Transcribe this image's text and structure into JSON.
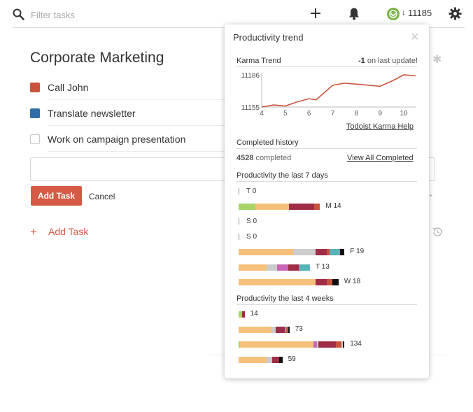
{
  "colors": {
    "accent": "#d65b46",
    "priority_red": "#c9533d",
    "priority_blue": "#2f6da8",
    "trend_line": "#c9533d",
    "bars": {
      "green": "#a6d469",
      "orange": "#f5c07a",
      "maroon": "#9e2d45",
      "rust": "#c9533d",
      "gray": "#cccccc",
      "teal": "#58b2b8",
      "pink": "#c967b6",
      "black": "#111111"
    }
  },
  "header": {
    "search_placeholder": "Filter tasks",
    "karma_arrow": "↓",
    "karma_score": "11185"
  },
  "project": {
    "title": "Corporate Marketing",
    "tasks": [
      {
        "label": "Call John",
        "priority_color": "#c9533d"
      },
      {
        "label": "Translate newsletter",
        "priority_color": "#2f6da8"
      },
      {
        "label": "Work on campaign presentation",
        "priority_color": ""
      }
    ],
    "add_button": "Add Task",
    "cancel": "Cancel",
    "add_task_link": "Add Task"
  },
  "popup": {
    "title": "Productivity trend",
    "karma_trend_title": "Karma Trend",
    "karma_update_value": "-1",
    "karma_update_text": " on last update!",
    "karma_help_link": "Todoist Karma Help",
    "completed_history_title": "Completed history",
    "completed_count": "4528",
    "completed_text": " completed",
    "view_all_link": "View All Completed",
    "last7_title": "Productivity the last 7 days",
    "last4_title": "Productivity the last 4 weeks"
  },
  "chart_data": [
    {
      "type": "line",
      "title": "Karma Trend",
      "x": [
        4,
        4.5,
        5,
        5.5,
        6,
        6.3,
        6.6,
        7,
        7.5,
        8,
        8.5,
        9,
        9.5,
        10,
        10.5
      ],
      "y": [
        11155,
        11157,
        11156,
        11160,
        11163,
        11162,
        11168,
        11176,
        11178,
        11177,
        11176,
        11175,
        11180,
        11186,
        11185
      ],
      "x_ticks": [
        "4",
        "5",
        "6",
        "7",
        "8",
        "9",
        "10"
      ],
      "y_ticks": [
        "11186",
        "11155"
      ],
      "ylim": [
        11155,
        11186
      ],
      "xlim": [
        4,
        10.5
      ]
    },
    {
      "type": "bar",
      "title": "Productivity the last 7 days",
      "rows": [
        {
          "label": "T",
          "total": "0",
          "segments": []
        },
        {
          "label": "M",
          "total": "14",
          "segments": [
            {
              "color": "green",
              "value": 2
            },
            {
              "color": "orange",
              "value": 4
            },
            {
              "color": "maroon",
              "value": 3
            },
            {
              "color": "rust",
              "value": 0.7
            }
          ]
        },
        {
          "label": "S",
          "total": "0",
          "segments": []
        },
        {
          "label": "S",
          "total": "0",
          "segments": []
        },
        {
          "label": "F",
          "total": "19",
          "segments": [
            {
              "color": "orange",
              "value": 6.5
            },
            {
              "color": "gray",
              "value": 2.7
            },
            {
              "color": "maroon",
              "value": 1.3
            },
            {
              "color": "rust",
              "value": 0.3
            },
            {
              "color": "teal",
              "value": 1.3
            },
            {
              "color": "black",
              "value": 0.5
            }
          ]
        },
        {
          "label": "T",
          "total": "13",
          "segments": [
            {
              "color": "orange",
              "value": 3.3
            },
            {
              "color": "gray",
              "value": 1.3
            },
            {
              "color": "pink",
              "value": 1.3
            },
            {
              "color": "maroon",
              "value": 1.3
            },
            {
              "color": "teal",
              "value": 1.3
            }
          ]
        },
        {
          "label": "W",
          "total": "18",
          "segments": [
            {
              "color": "orange",
              "value": 9.2
            },
            {
              "color": "maroon",
              "value": 1.3
            },
            {
              "color": "rust",
              "value": 0.7
            },
            {
              "color": "black",
              "value": 0.7
            }
          ]
        }
      ]
    },
    {
      "type": "bar",
      "title": "Productivity the last 4 weeks",
      "rows": [
        {
          "total": "14",
          "segments": [
            {
              "color": "green",
              "value": 7
            },
            {
              "color": "maroon",
              "value": 5
            }
          ]
        },
        {
          "total": "73",
          "segments": [
            {
              "color": "orange",
              "value": 65
            },
            {
              "color": "gray",
              "value": 9
            },
            {
              "color": "maroon",
              "value": 17
            },
            {
              "color": "teal",
              "value": 4
            },
            {
              "color": "rust",
              "value": 4
            },
            {
              "color": "black",
              "value": 2
            }
          ]
        },
        {
          "total": "134",
          "segments": [
            {
              "color": "green",
              "value": 3
            },
            {
              "color": "orange",
              "value": 145
            },
            {
              "color": "pink",
              "value": 7
            },
            {
              "color": "gray",
              "value": 3
            },
            {
              "color": "maroon",
              "value": 35
            },
            {
              "color": "rust",
              "value": 11
            },
            {
              "color": "gray",
              "value": 3
            },
            {
              "color": "black",
              "value": 3
            }
          ]
        },
        {
          "total": "59",
          "segments": [
            {
              "color": "orange",
              "value": 56
            },
            {
              "color": "gray",
              "value": 11
            },
            {
              "color": "maroon",
              "value": 14
            },
            {
              "color": "black",
              "value": 6
            }
          ]
        }
      ]
    }
  ]
}
